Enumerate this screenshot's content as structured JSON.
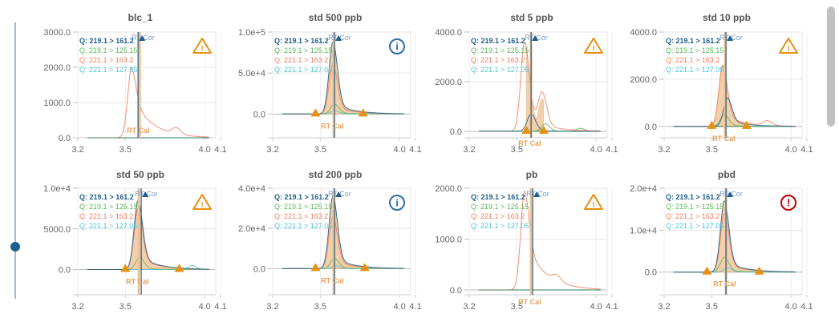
{
  "legend": [
    {
      "label": "Q: 219.1 > 161.2",
      "color": "#1f5f8b",
      "bold": true
    },
    {
      "label": "Q: 219.1 > 125.15",
      "color": "#5cb85c"
    },
    {
      "label": "Q: 221.1 > 163.2",
      "color": "#f07f5f"
    },
    {
      "label": "Q: 221.1 > 127.05",
      "color": "#4fc3d9"
    }
  ],
  "rt_cor_label": "RT Cor",
  "rt_cal_label": "RT Cal",
  "status_colors": {
    "warning": "#e8900f",
    "info": "#2f6ea6",
    "error": "#c00000"
  },
  "slider": {
    "value_fraction": 0.81
  },
  "chart_data": [
    {
      "type": "line",
      "title": "blc_1",
      "status": "warning",
      "x_ticks": [
        "3.2",
        "3.5",
        "4.0",
        "4.1"
      ],
      "y_ticks": [
        "3000.0",
        "2000.0",
        "1000.0",
        "0.0"
      ],
      "y_tick_values": [
        3000,
        2000,
        1000,
        0
      ],
      "ylim": [
        0,
        3000
      ],
      "rt_cor": 3.58,
      "rt_cal": 3.59,
      "integration": null,
      "peaks": [
        {
          "trace": 2,
          "rt": 3.54,
          "height": 2000,
          "tail": 0.6
        },
        {
          "trace": 2,
          "rt": 3.82,
          "height": 180,
          "tail": 0
        }
      ]
    },
    {
      "type": "line",
      "title": "std 500 ppb",
      "status": "info",
      "x_ticks": [
        "3.2",
        "3.5",
        "4.0",
        "4.1"
      ],
      "y_ticks": [
        "1.0e+5",
        "5.0e+4",
        "0.0"
      ],
      "y_tick_values": [
        100000,
        50000,
        0
      ],
      "ylim": [
        -29000,
        100000
      ],
      "rt_cor": 3.59,
      "rt_cal": 3.585,
      "integration": [
        3.47,
        3.77
      ],
      "peaks": [
        {
          "trace": 0,
          "rt": 3.58,
          "height": 88000,
          "tail": 0.15
        },
        {
          "trace": 2,
          "rt": 3.58,
          "height": 60000,
          "tail": 0.15
        },
        {
          "trace": 1,
          "rt": 3.59,
          "height": 12000,
          "tail": 0.1
        },
        {
          "trace": 3,
          "rt": 3.59,
          "height": 4000,
          "tail": 0.1
        }
      ]
    },
    {
      "type": "line",
      "title": "std 5 ppb",
      "status": "warning",
      "x_ticks": [
        "3.2",
        "3.5",
        "4.0",
        "4.1"
      ],
      "y_ticks": [
        "4000.0",
        "2000.0",
        "0.0"
      ],
      "y_tick_values": [
        4000,
        2000,
        0
      ],
      "ylim": [
        -260,
        4000
      ],
      "rt_cor": 3.59,
      "rt_cal": 3.59,
      "integration": [
        3.56,
        3.67
      ],
      "peaks": [
        {
          "trace": 2,
          "rt": 3.55,
          "height": 3600,
          "tail": 0.2
        },
        {
          "trace": 2,
          "rt": 3.66,
          "height": 1300,
          "tail": 0
        },
        {
          "trace": 0,
          "rt": 3.59,
          "height": 700,
          "tail": 0.05
        },
        {
          "trace": 1,
          "rt": 3.68,
          "height": 300,
          "tail": 0
        },
        {
          "trace": 1,
          "rt": 3.9,
          "height": 120,
          "tail": 0
        }
      ]
    },
    {
      "type": "line",
      "title": "std 10 ppb",
      "status": "warning",
      "x_ticks": [
        "3.2",
        "3.5",
        "4.0",
        "4.1"
      ],
      "y_ticks": [
        "4000.0",
        "2000.0",
        "0.0"
      ],
      "y_tick_values": [
        4000,
        2000,
        0
      ],
      "ylim": [
        -480,
        4000
      ],
      "rt_cor": 3.59,
      "rt_cal": 3.585,
      "integration": [
        3.5,
        3.72
      ],
      "peaks": [
        {
          "trace": 0,
          "rt": 3.6,
          "height": 1200,
          "tail": 0.2
        },
        {
          "trace": 2,
          "rt": 3.57,
          "height": 2600,
          "tail": 0.2
        },
        {
          "trace": 1,
          "rt": 3.58,
          "height": 500,
          "tail": 0.1
        },
        {
          "trace": 2,
          "rt": 3.85,
          "height": 200,
          "tail": 0
        }
      ]
    },
    {
      "type": "line",
      "title": "std 50 ppb",
      "status": "warning",
      "x_ticks": [
        "3.2",
        "3.5",
        "4.0",
        "4.1"
      ],
      "y_ticks": [
        "1.0e+4",
        "5000.0",
        "0.0"
      ],
      "y_tick_values": [
        10000,
        5000,
        0
      ],
      "ylim": [
        -3100,
        10000
      ],
      "rt_cor": 3.6,
      "rt_cal": 3.585,
      "integration": [
        3.5,
        3.84
      ],
      "peaks": [
        {
          "trace": 0,
          "rt": 3.58,
          "height": 8500,
          "tail": 0.2
        },
        {
          "trace": 2,
          "rt": 3.58,
          "height": 7500,
          "tail": 0.2
        },
        {
          "trace": 1,
          "rt": 3.59,
          "height": 1500,
          "tail": 0.1
        },
        {
          "trace": 3,
          "rt": 3.92,
          "height": 500,
          "tail": 0
        }
      ]
    },
    {
      "type": "line",
      "title": "std 200 ppb",
      "status": "info",
      "x_ticks": [
        "3.2",
        "3.5",
        "4.0",
        "4.1"
      ],
      "y_ticks": [
        "4.0e+4",
        "2.0e+4",
        "0.0"
      ],
      "y_tick_values": [
        40000,
        20000,
        0
      ],
      "ylim": [
        -13000,
        40000
      ],
      "rt_cor": 3.59,
      "rt_cal": 3.585,
      "integration": [
        3.47,
        3.78
      ],
      "peaks": [
        {
          "trace": 0,
          "rt": 3.58,
          "height": 36000,
          "tail": 0.15
        },
        {
          "trace": 2,
          "rt": 3.58,
          "height": 26000,
          "tail": 0.15
        },
        {
          "trace": 1,
          "rt": 3.59,
          "height": 5000,
          "tail": 0.1
        },
        {
          "trace": 3,
          "rt": 3.6,
          "height": 1500,
          "tail": 0.1
        }
      ]
    },
    {
      "type": "line",
      "title": "pb",
      "status": "warning",
      "x_ticks": [
        "3.2",
        "3.5",
        "4.0",
        "4.1"
      ],
      "y_ticks": [
        "2000.0",
        "1000.0",
        "0.0"
      ],
      "y_tick_values": [
        2000,
        1000,
        0
      ],
      "ylim": [
        -95,
        2000
      ],
      "rt_cor": 3.6,
      "rt_cal": 3.59,
      "integration": null,
      "peaks": [
        {
          "trace": 2,
          "rt": 3.55,
          "height": 1950,
          "tail": 0.5
        },
        {
          "trace": 2,
          "rt": 3.75,
          "height": 120,
          "tail": 0
        }
      ]
    },
    {
      "type": "line",
      "title": "pbd",
      "status": "error",
      "x_ticks": [
        "3.2",
        "3.5",
        "4.0",
        "4.1"
      ],
      "y_ticks": [
        "2.0e+4",
        "1.0e+4",
        "0.0"
      ],
      "y_tick_values": [
        20000,
        10000,
        0
      ],
      "ylim": [
        -5400,
        20000
      ],
      "rt_cor": 3.59,
      "rt_cal": 3.59,
      "integration": [
        3.47,
        3.8
      ],
      "peaks": [
        {
          "trace": 0,
          "rt": 3.58,
          "height": 17000,
          "tail": 0.15
        },
        {
          "trace": 2,
          "rt": 3.58,
          "height": 14000,
          "tail": 0.15
        },
        {
          "trace": 1,
          "rt": 3.58,
          "height": 3500,
          "tail": 0.1
        },
        {
          "trace": 3,
          "rt": 3.6,
          "height": 1000,
          "tail": 0.1
        }
      ]
    }
  ]
}
